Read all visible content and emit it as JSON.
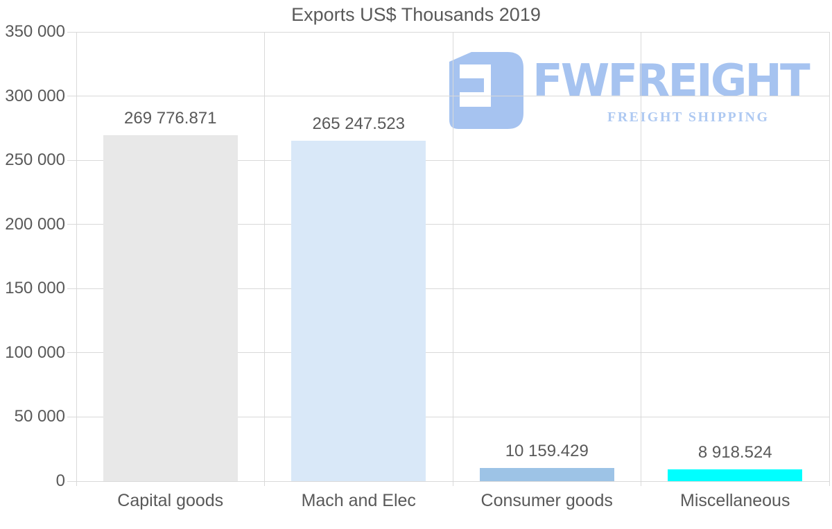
{
  "page": {
    "background": "#ffffff"
  },
  "logo": {
    "brand": "FWFREIGHT",
    "tagline": "FREIGHT SHIPPING",
    "color": "#a6c3f0",
    "tagline_color": "#aec9f2"
  },
  "colors": {
    "text": "#595959",
    "gridline": "#d9d9d9"
  },
  "chart_data": {
    "type": "bar",
    "title": "Exports US$ Thousands 2019",
    "categories": [
      "Capital goods",
      "Mach and Elec",
      "Consumer goods",
      "Miscellaneous"
    ],
    "values": [
      269776.871,
      265247.523,
      10159.429,
      8918.524
    ],
    "value_labels": [
      "269 776.871",
      "265 247.523",
      "10 159.429",
      "8 918.524"
    ],
    "bar_colors": [
      "#e8e8e8",
      "#d9e8f8",
      "#9dc3e6",
      "#00ffff"
    ],
    "xlabel": "",
    "ylabel": "",
    "ylim": [
      0,
      350000
    ],
    "ytick_interval": 50000,
    "ytick_labels": [
      "0",
      "50 000",
      "100 000",
      "150 000",
      "200 000",
      "250 000",
      "300 000",
      "350 000"
    ],
    "grid": true,
    "legend": false
  }
}
